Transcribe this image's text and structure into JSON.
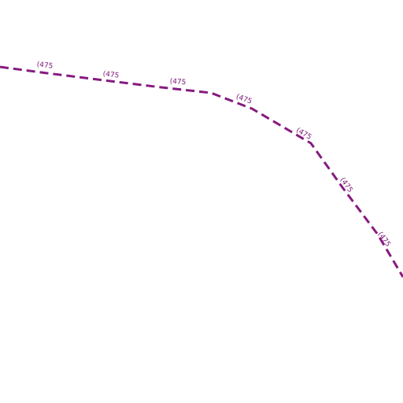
{
  "route": {
    "label": "(475"
  }
}
